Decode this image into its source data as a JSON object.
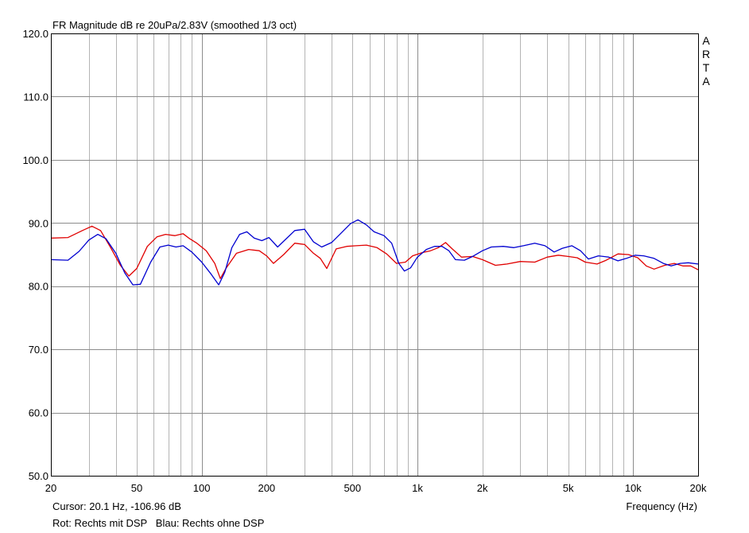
{
  "chart_data": {
    "type": "line",
    "title": "FR Magnitude dB re 20uPa/2.83V (smoothed 1/3 oct)",
    "watermark": [
      "A",
      "R",
      "T",
      "A"
    ],
    "xlabel": "Frequency (Hz)",
    "x_scale": "log",
    "xlim": [
      20,
      20000
    ],
    "ylim": [
      50,
      120
    ],
    "grid": true,
    "x_ticks": [
      {
        "v": 20,
        "label": "20"
      },
      {
        "v": 50,
        "label": "50"
      },
      {
        "v": 100,
        "label": "100"
      },
      {
        "v": 200,
        "label": "200"
      },
      {
        "v": 500,
        "label": "500"
      },
      {
        "v": 1000,
        "label": "1k"
      },
      {
        "v": 2000,
        "label": "2k"
      },
      {
        "v": 5000,
        "label": "5k"
      },
      {
        "v": 10000,
        "label": "10k"
      },
      {
        "v": 20000,
        "label": "20k"
      }
    ],
    "y_ticks": [
      {
        "v": 120,
        "label": "120.0"
      },
      {
        "v": 110,
        "label": "110.0"
      },
      {
        "v": 100,
        "label": "100.0"
      },
      {
        "v": 90,
        "label": "90.0"
      },
      {
        "v": 80,
        "label": "80.0"
      },
      {
        "v": 70,
        "label": "70.0"
      },
      {
        "v": 60,
        "label": "60.0"
      },
      {
        "v": 50,
        "label": "50.0"
      }
    ],
    "series": [
      {
        "color": "#e00000",
        "points": [
          [
            20,
            87.6
          ],
          [
            24,
            87.7
          ],
          [
            28,
            88.8
          ],
          [
            31,
            89.5
          ],
          [
            34,
            88.8
          ],
          [
            38,
            86.0
          ],
          [
            42,
            83.3
          ],
          [
            46,
            81.6
          ],
          [
            50,
            82.8
          ],
          [
            56,
            86.3
          ],
          [
            62,
            87.8
          ],
          [
            68,
            88.2
          ],
          [
            75,
            88.0
          ],
          [
            82,
            88.3
          ],
          [
            88,
            87.5
          ],
          [
            95,
            86.8
          ],
          [
            105,
            85.6
          ],
          [
            115,
            83.6
          ],
          [
            122,
            81.2
          ],
          [
            130,
            82.9
          ],
          [
            145,
            85.2
          ],
          [
            165,
            85.8
          ],
          [
            185,
            85.6
          ],
          [
            200,
            84.8
          ],
          [
            215,
            83.6
          ],
          [
            240,
            85.0
          ],
          [
            270,
            86.8
          ],
          [
            300,
            86.6
          ],
          [
            330,
            85.2
          ],
          [
            355,
            84.4
          ],
          [
            380,
            82.8
          ],
          [
            420,
            85.9
          ],
          [
            470,
            86.3
          ],
          [
            520,
            86.4
          ],
          [
            580,
            86.5
          ],
          [
            650,
            86.1
          ],
          [
            720,
            85.1
          ],
          [
            800,
            83.6
          ],
          [
            880,
            83.8
          ],
          [
            950,
            84.8
          ],
          [
            1050,
            85.3
          ],
          [
            1150,
            85.6
          ],
          [
            1250,
            86.1
          ],
          [
            1350,
            86.9
          ],
          [
            1450,
            85.9
          ],
          [
            1600,
            84.6
          ],
          [
            1800,
            84.7
          ],
          [
            2000,
            84.2
          ],
          [
            2300,
            83.3
          ],
          [
            2600,
            83.5
          ],
          [
            3000,
            83.9
          ],
          [
            3500,
            83.8
          ],
          [
            4000,
            84.6
          ],
          [
            4500,
            84.9
          ],
          [
            5000,
            84.7
          ],
          [
            5500,
            84.5
          ],
          [
            6000,
            83.8
          ],
          [
            6800,
            83.5
          ],
          [
            7500,
            84.1
          ],
          [
            8500,
            85.1
          ],
          [
            9500,
            85.0
          ],
          [
            10500,
            84.5
          ],
          [
            11500,
            83.2
          ],
          [
            12500,
            82.7
          ],
          [
            14000,
            83.3
          ],
          [
            15500,
            83.6
          ],
          [
            17000,
            83.2
          ],
          [
            18500,
            83.2
          ],
          [
            20000,
            82.6
          ]
        ]
      },
      {
        "color": "#0000d0",
        "points": [
          [
            20,
            84.2
          ],
          [
            24,
            84.1
          ],
          [
            27,
            85.5
          ],
          [
            30,
            87.3
          ],
          [
            33,
            88.2
          ],
          [
            36,
            87.5
          ],
          [
            40,
            85.2
          ],
          [
            44,
            82.1
          ],
          [
            48,
            80.2
          ],
          [
            52,
            80.3
          ],
          [
            58,
            83.8
          ],
          [
            64,
            86.2
          ],
          [
            70,
            86.5
          ],
          [
            76,
            86.2
          ],
          [
            82,
            86.4
          ],
          [
            90,
            85.4
          ],
          [
            100,
            83.8
          ],
          [
            110,
            82.0
          ],
          [
            120,
            80.2
          ],
          [
            128,
            82.2
          ],
          [
            138,
            86.1
          ],
          [
            150,
            88.2
          ],
          [
            162,
            88.6
          ],
          [
            175,
            87.6
          ],
          [
            190,
            87.2
          ],
          [
            205,
            87.7
          ],
          [
            225,
            86.2
          ],
          [
            245,
            87.4
          ],
          [
            270,
            88.8
          ],
          [
            300,
            89.0
          ],
          [
            330,
            87.0
          ],
          [
            360,
            86.2
          ],
          [
            400,
            86.9
          ],
          [
            440,
            88.3
          ],
          [
            490,
            89.9
          ],
          [
            530,
            90.5
          ],
          [
            580,
            89.7
          ],
          [
            630,
            88.6
          ],
          [
            700,
            88.0
          ],
          [
            760,
            86.8
          ],
          [
            820,
            83.6
          ],
          [
            870,
            82.4
          ],
          [
            930,
            82.9
          ],
          [
            1000,
            84.6
          ],
          [
            1100,
            85.8
          ],
          [
            1200,
            86.3
          ],
          [
            1300,
            86.3
          ],
          [
            1400,
            85.6
          ],
          [
            1500,
            84.2
          ],
          [
            1650,
            84.1
          ],
          [
            1800,
            84.7
          ],
          [
            2000,
            85.6
          ],
          [
            2200,
            86.2
          ],
          [
            2500,
            86.3
          ],
          [
            2800,
            86.1
          ],
          [
            3100,
            86.4
          ],
          [
            3500,
            86.8
          ],
          [
            3900,
            86.4
          ],
          [
            4300,
            85.4
          ],
          [
            4700,
            86.0
          ],
          [
            5200,
            86.4
          ],
          [
            5700,
            85.6
          ],
          [
            6200,
            84.3
          ],
          [
            6900,
            84.8
          ],
          [
            7700,
            84.6
          ],
          [
            8500,
            84.0
          ],
          [
            9300,
            84.4
          ],
          [
            10200,
            84.9
          ],
          [
            11200,
            84.8
          ],
          [
            12500,
            84.4
          ],
          [
            13800,
            83.6
          ],
          [
            15000,
            83.2
          ],
          [
            16500,
            83.6
          ],
          [
            18000,
            83.7
          ],
          [
            20000,
            83.5
          ]
        ]
      }
    ]
  },
  "footer": {
    "cursor": "Cursor: 20.1 Hz, -106.96 dB",
    "legend": "Rot: Rechts mit DSP   Blau: Rechts ohne DSP"
  }
}
